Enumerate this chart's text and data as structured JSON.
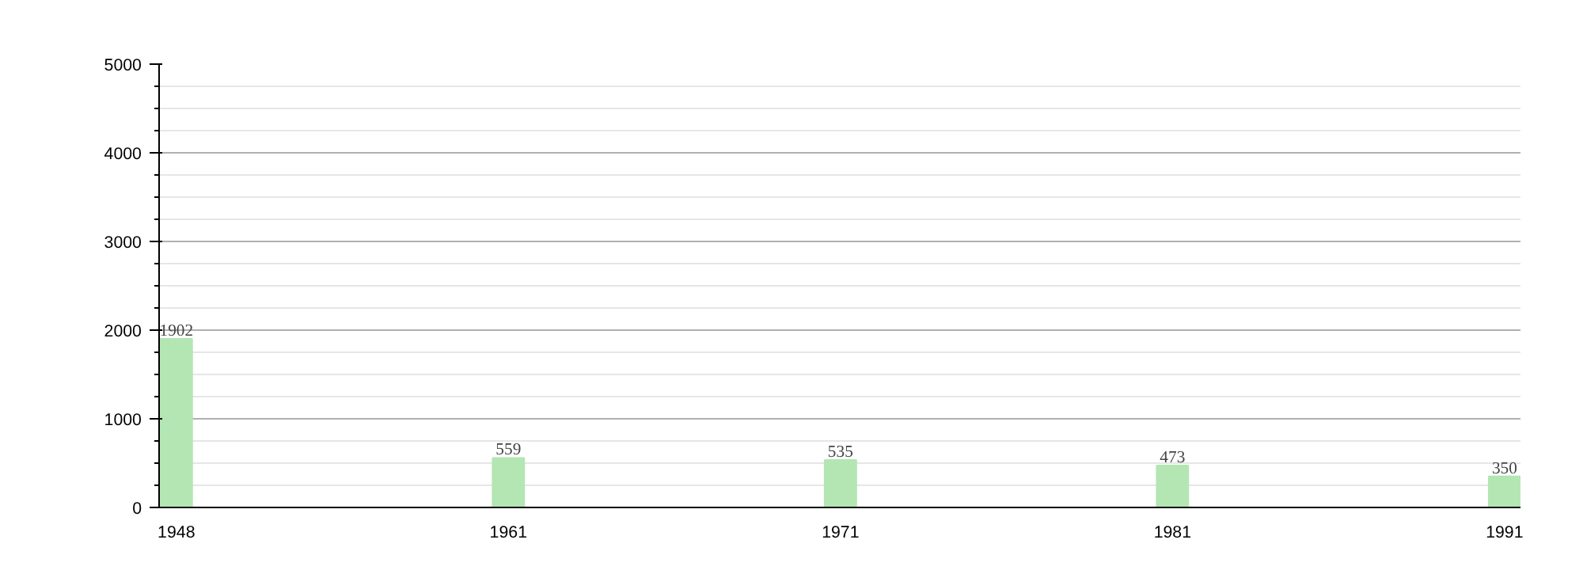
{
  "chart_data": {
    "type": "bar",
    "categories": [
      "1948",
      "1961",
      "1971",
      "1981",
      "1991"
    ],
    "values": [
      1902,
      559,
      535,
      473,
      350
    ],
    "color": "#b3e6b3",
    "ylim": [
      0,
      5000
    ],
    "yticks": [
      0,
      1000,
      2000,
      3000,
      4000,
      5000
    ],
    "grid": "y",
    "data_labels": true
  }
}
